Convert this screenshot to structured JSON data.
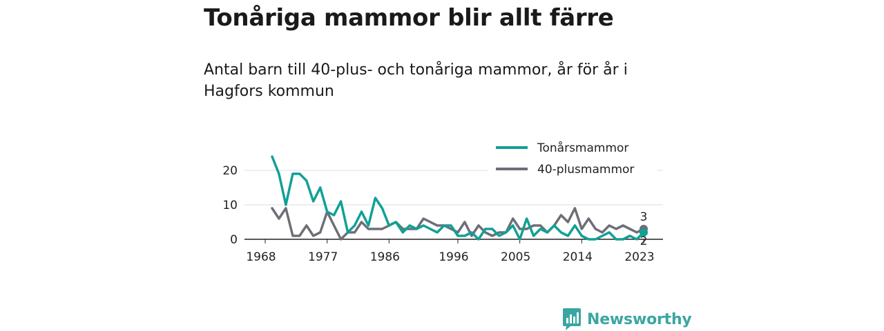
{
  "title": "Tonåriga mammor blir allt färre",
  "subtitle": "Antal barn till 40-plus- och tonåriga mammor, år för år i Hagfors kommun",
  "brand": {
    "name": "Newsworthy",
    "color": "#3aa6a0"
  },
  "chart_data": {
    "type": "line",
    "title": "Tonåriga mammor blir allt färre",
    "xlabel": "",
    "ylabel": "",
    "xlim": [
      1968,
      2023
    ],
    "ylim": [
      0,
      25
    ],
    "x_ticks": [
      1968,
      1977,
      1986,
      1996,
      2005,
      2014,
      2023
    ],
    "y_ticks": [
      0,
      10,
      20
    ],
    "grid": true,
    "legend_position": "top-right",
    "x": [
      1969,
      1970,
      1971,
      1972,
      1973,
      1974,
      1975,
      1976,
      1977,
      1978,
      1979,
      1980,
      1981,
      1982,
      1983,
      1984,
      1985,
      1986,
      1987,
      1988,
      1989,
      1990,
      1991,
      1992,
      1993,
      1994,
      1995,
      1996,
      1997,
      1998,
      1999,
      2000,
      2001,
      2002,
      2003,
      2004,
      2005,
      2006,
      2007,
      2008,
      2009,
      2010,
      2011,
      2012,
      2013,
      2014,
      2015,
      2016,
      2017,
      2018,
      2019,
      2020,
      2021,
      2022,
      2023
    ],
    "series": [
      {
        "name": "Tonårsmammor",
        "color": "#11a095",
        "values": [
          24,
          19,
          10,
          19,
          19,
          17,
          11,
          15,
          8,
          7,
          11,
          2,
          4,
          8,
          4,
          12,
          9,
          4,
          5,
          2,
          4,
          3,
          4,
          3,
          2,
          4,
          4,
          1,
          1,
          2,
          0,
          3,
          3,
          1,
          2,
          4,
          0,
          6,
          1,
          3,
          2,
          4,
          2,
          1,
          4,
          1,
          0,
          0,
          1,
          2,
          0,
          0,
          1,
          0,
          2
        ]
      },
      {
        "name": "40-plusmammor",
        "color": "#6e6e77",
        "values": [
          9,
          6,
          9,
          1,
          1,
          4,
          1,
          2,
          8,
          4,
          0,
          2,
          2,
          5,
          3,
          3,
          3,
          4,
          5,
          3,
          3,
          3,
          6,
          5,
          4,
          4,
          3,
          2,
          5,
          1,
          4,
          2,
          1,
          2,
          2,
          6,
          3,
          3,
          4,
          4,
          2,
          4,
          7,
          5,
          9,
          3,
          6,
          3,
          2,
          4,
          3,
          4,
          3,
          2,
          3
        ]
      }
    ],
    "end_labels": {
      "Tonårsmammor": "2",
      "40-plusmammor": "3"
    }
  }
}
